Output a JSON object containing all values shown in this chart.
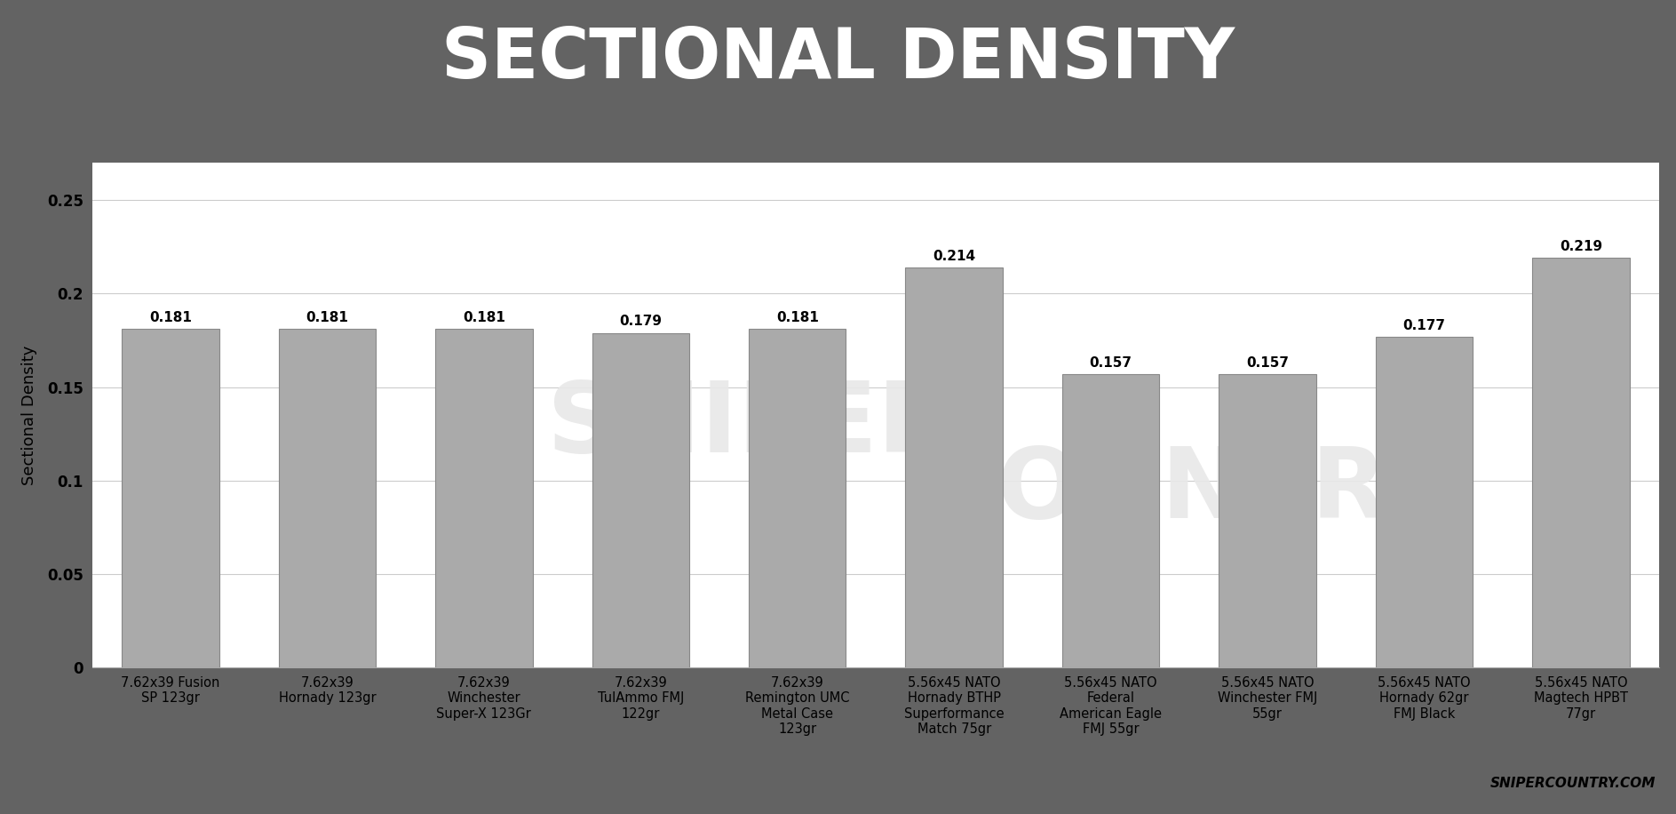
{
  "title": "SECTIONAL DENSITY",
  "ylabel": "Sectional Density",
  "categories": [
    "7.62x39 Fusion\nSP 123gr",
    "7.62x39\nHornady 123gr",
    "7.62x39\nWinchester\nSuper-X 123Gr",
    "7.62x39\nTulAmmo FMJ\n122gr",
    "7.62x39\nRemington UMC\nMetal Case\n123gr",
    "5.56x45 NATO\nHornady BTHP\nSuperformance\nMatch 75gr",
    "5.56x45 NATO\nFederal\nAmerican Eagle\nFMJ 55gr",
    "5.56x45 NATO\nWinchester FMJ\n55gr",
    "5.56x45 NATO\nHornady 62gr\nFMJ Black",
    "5.56x45 NATO\nMagtech HPBT\n77gr"
  ],
  "values": [
    0.181,
    0.181,
    0.181,
    0.179,
    0.181,
    0.214,
    0.157,
    0.157,
    0.177,
    0.219
  ],
  "bar_color": "#aaaaaa",
  "bar_edge_color": "#888888",
  "title_bg_color": "#636363",
  "title_text_color": "#ffffff",
  "red_stripe_color": "#f06060",
  "chart_bg_color": "#ffffff",
  "outer_bg_color": "#636363",
  "gridline_color": "#cccccc",
  "watermark_color": "#e8e8e8",
  "footer_text": "SNIPERCOUNTRY.COM",
  "ylim": [
    0,
    0.27
  ],
  "yticks": [
    0,
    0.05,
    0.1,
    0.15,
    0.2,
    0.25
  ],
  "title_fontsize": 56,
  "label_fontsize": 10.5,
  "value_fontsize": 11,
  "ylabel_fontsize": 13,
  "footer_fontsize": 11
}
